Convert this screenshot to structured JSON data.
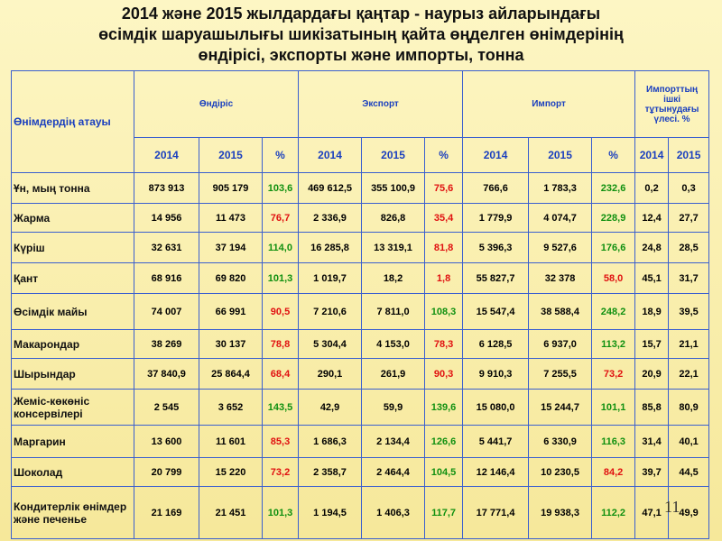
{
  "title": [
    "2014 және 2015 жылдардағы қаңтар - наурыз айларындағы",
    "өсімдік шаруашылығы шикізатының қайта өңделген өнімдерінің",
    "өндірісі, экспорты және импорты, тонна"
  ],
  "table": {
    "name_header": "Өнімдердің атауы",
    "groups": [
      "Өндіріс",
      "Экспорт",
      "Импорт",
      "Импорттың ішкі тұтынудағы үлесі.  %"
    ],
    "subheader": [
      "2014",
      "2015",
      "%",
      "2014",
      "2015",
      "%",
      "2014",
      "2015",
      "%",
      "2014",
      "2015"
    ],
    "rows": [
      [
        "Ұн, мың тонна",
        "873 913",
        "905 179",
        "103,6",
        "469 612,5",
        "355 100,9",
        "75,6",
        "766,6",
        "1 783,3",
        "232,6",
        "0,2",
        "0,3"
      ],
      [
        "Жарма",
        "14 956",
        "11 473",
        "76,7",
        "2 336,9",
        "826,8",
        "35,4",
        "1 779,9",
        "4 074,7",
        "228,9",
        "12,4",
        "27,7"
      ],
      [
        "Күріш",
        "32 631",
        "37 194",
        "114,0",
        "16 285,8",
        "13 319,1",
        "81,8",
        "5 396,3",
        "9 527,6",
        "176,6",
        "24,8",
        "28,5"
      ],
      [
        "Қант",
        "68 916",
        "69 820",
        "101,3",
        "1 019,7",
        "18,2",
        "1,8",
        "55 827,7",
        "32 378",
        "58,0",
        "45,1",
        "31,7"
      ],
      [
        "Өсімдік майы",
        "74 007",
        "66 991",
        "90,5",
        "7 210,6",
        "7 811,0",
        "108,3",
        "15 547,4",
        "38 588,4",
        "248,2",
        "18,9",
        "39,5"
      ],
      [
        "Макарондар",
        "38 269",
        "30 137",
        "78,8",
        "5 304,4",
        "4 153,0",
        "78,3",
        "6 128,5",
        "6 937,0",
        "113,2",
        "15,7",
        "21,1"
      ],
      [
        "Шырындар",
        "37 840,9",
        "25 864,4",
        "68,4",
        "290,1",
        "261,9",
        "90,3",
        "9 910,3",
        "7 255,5",
        "73,2",
        "20,9",
        "22,1"
      ],
      [
        "Жеміс-көкөніс консервілері",
        "2 545",
        "3 652",
        "143,5",
        "42,9",
        "59,9",
        "139,6",
        "15 080,0",
        "15 244,7",
        "101,1",
        "85,8",
        "80,9"
      ],
      [
        "Маргарин",
        "13 600",
        "11 601",
        "85,3",
        "1 686,3",
        "2 134,4",
        "126,6",
        "5 441,7",
        "6 330,9",
        "116,3",
        "31,4",
        "40,1"
      ],
      [
        "Шоколад",
        "20 799",
        "15 220",
        "73,2",
        "2 358,7",
        "2 464,4",
        "104,5",
        "12 146,4",
        "10 230,5",
        "84,2",
        "39,7",
        "44,5"
      ],
      [
        "Кондитерлік өнімдер және печенье",
        "21 169",
        "21 451",
        "101,3",
        "1 194,5",
        "1 406,3",
        "117,7",
        "17 771,4",
        "19 938,3",
        "112,2",
        "47,1",
        "49,9"
      ]
    ]
  },
  "page_number": "11"
}
